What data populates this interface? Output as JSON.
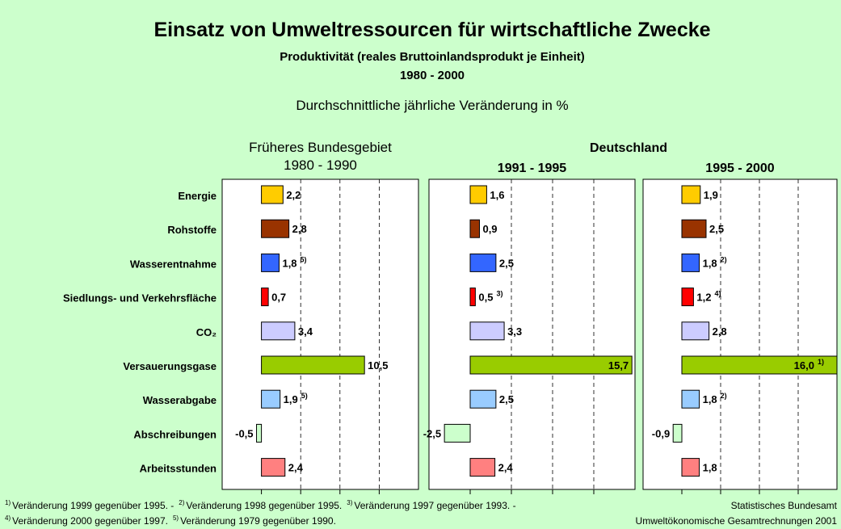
{
  "title": "Einsatz von Umweltressourcen für wirtschaftliche Zwecke",
  "subtitle": "Produktivität (reales Bruttoinlandsprodukt je Einheit)",
  "period": "1980 - 2000",
  "unit_note": "Durchschnittliche jährliche Veränderung in %",
  "group_title": "Deutschland",
  "categories": [
    "Energie",
    "Rohstoffe",
    "Wasserentnahme",
    "Siedlungs- und Verkehrsfläche",
    "CO₂",
    "Versauerungsgase",
    "Wasserabgabe",
    "Abschreibungen",
    "Arbeitsstunden"
  ],
  "colors": [
    "#ffcc00",
    "#993300",
    "#3366ff",
    "#ff0000",
    "#ccccff",
    "#99cc00",
    "#99ccff",
    "#ccffcc",
    "#ff8080"
  ],
  "chart_data": [
    {
      "type": "bar",
      "orientation": "horizontal",
      "title": [
        "Früheres Bundesgebiet",
        "1980 - 1990"
      ],
      "values": [
        2.2,
        2.8,
        1.8,
        0.7,
        3.4,
        10.5,
        1.9,
        -0.5,
        2.4
      ],
      "value_labels": [
        "2,2",
        "2,8",
        "1,8",
        "0,7",
        "3,4",
        "10,5",
        "1,9",
        "-0,5",
        "2,4"
      ],
      "value_notes": [
        null,
        null,
        "5)",
        null,
        null,
        null,
        "5)",
        null,
        null
      ],
      "xlim": [
        -4,
        16
      ],
      "xticks": [
        0,
        4,
        8,
        12
      ],
      "grid": true
    },
    {
      "type": "bar",
      "orientation": "horizontal",
      "title": [
        "1991 - 1995"
      ],
      "values": [
        1.6,
        0.9,
        2.5,
        0.5,
        3.3,
        15.7,
        2.5,
        -2.5,
        2.4
      ],
      "value_labels": [
        "1,6",
        "0,9",
        "2,5",
        "0,5",
        "3,3",
        "15,7",
        "2,5",
        "-2,5",
        "2,4"
      ],
      "value_notes": [
        null,
        null,
        null,
        "3)",
        null,
        null,
        null,
        null,
        null
      ],
      "xlim": [
        -4,
        16
      ],
      "xticks": [
        0,
        4,
        8,
        12
      ],
      "grid": true
    },
    {
      "type": "bar",
      "orientation": "horizontal",
      "title": [
        "1995 - 2000"
      ],
      "values": [
        1.9,
        2.5,
        1.8,
        1.2,
        2.8,
        16.0,
        1.8,
        -0.9,
        1.8
      ],
      "value_labels": [
        "1,9",
        "2,5",
        "1,8",
        "1,2",
        "2,8",
        "16,0",
        "1,8",
        "-0,9",
        "1,8"
      ],
      "value_notes": [
        null,
        null,
        "2)",
        "4)",
        null,
        "1)",
        "2)",
        null,
        null
      ],
      "xlim": [
        -4,
        16
      ],
      "xticks": [
        0,
        4,
        8,
        12
      ],
      "grid": true
    }
  ],
  "footnote_lines": [
    [
      {
        "mark": "1)",
        "text": "Veränderung 1999 gegenüber 1995. -"
      },
      {
        "mark": "2)",
        "text": "Veränderung 1998 gegenüber 1995."
      },
      {
        "mark": "3)",
        "text": "Veränderung 1997 gegenüber 1993. -"
      }
    ],
    [
      {
        "mark": "4)",
        "text": "Veränderung 2000 gegenüber 1997."
      },
      {
        "mark": "5)",
        "text": "Veränderung 1979 gegenüber 1990."
      }
    ]
  ],
  "source": [
    "Statistisches Bundesamt",
    "Umweltökonomische Gesamtrechnungen 2001"
  ]
}
